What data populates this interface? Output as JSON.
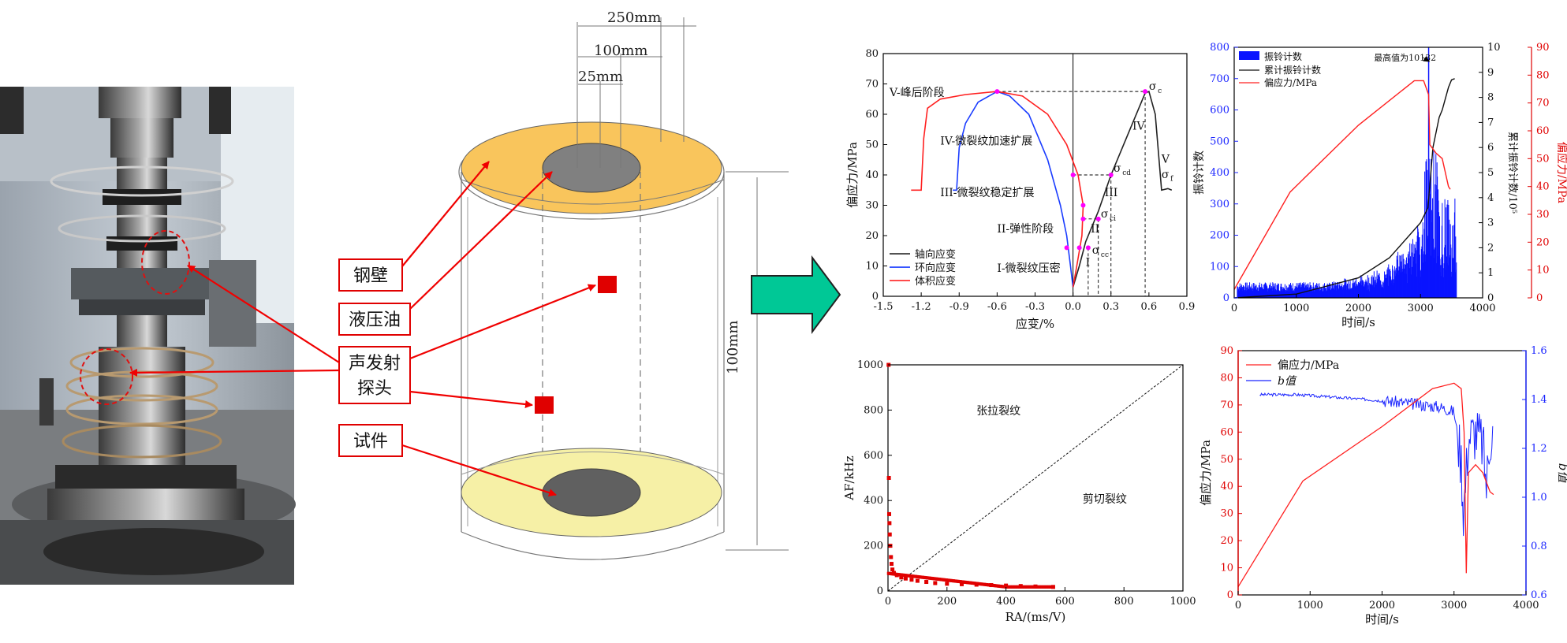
{
  "photo": {
    "description_labels": []
  },
  "schematic": {
    "dim_250": "250mm",
    "dim_100w": "100mm",
    "dim_25": "25mm",
    "dim_100h": "100mm",
    "labels": {
      "steel_wall": "钢壁",
      "hydraulic_oil": "液压油",
      "ae_probe_1": "声发射",
      "ae_probe_2": "探头",
      "specimen": "试件"
    },
    "colors": {
      "oil": "#f9c55c",
      "oil_bottom": "#f6f0a6",
      "specimen": "#808080",
      "probe": "#e00000",
      "arrow": "#f00000",
      "big_arrow": "#00c896"
    }
  },
  "chart_data": [
    {
      "type": "line",
      "id": "stress-strain",
      "xlabel": "应变/%",
      "ylabel": "偏应力/MPa",
      "xlim": [
        -1.5,
        0.9
      ],
      "ylim": [
        0,
        80
      ],
      "xticks": [
        "-1.5",
        "-1.2",
        "-0.9",
        "-0.6",
        "-0.3",
        "0.0",
        "0.3",
        "0.6",
        "0.9"
      ],
      "yticks": [
        "0",
        "10",
        "20",
        "30",
        "40",
        "50",
        "60",
        "70",
        "80"
      ],
      "legend": [
        "轴向应变",
        "环向应变",
        "体积应变"
      ],
      "legend_colors": [
        "#222222",
        "#1a3cff",
        "#ff2020"
      ],
      "annotations": {
        "stage5": "V-峰后阶段",
        "stage4": "IV-微裂纹加速扩展",
        "stage3": "III-微裂纹稳定扩展",
        "stage2": "II-弹性阶段",
        "stage1": "I-微裂纹压密",
        "roman4": "IV",
        "roman5": "V",
        "roman3": "III",
        "roman2": "II",
        "roman1": "I",
        "sigma_c": "σ",
        "sigma_c_sub": "c",
        "sigma_cd_sub": "cd",
        "sigma_ci_sub": "ci",
        "sigma_cc_sub": "cc",
        "sigma_f_sub": "f"
      },
      "series": [
        {
          "name": "轴向应变",
          "points": [
            [
              0,
              3
            ],
            [
              0.05,
              10
            ],
            [
              0.1,
              18
            ],
            [
              0.2,
              28
            ],
            [
              0.3,
              40
            ],
            [
              0.45,
              55
            ],
            [
              0.57,
              67
            ],
            [
              0.6,
              67.5
            ],
            [
              0.65,
              60
            ],
            [
              0.7,
              35
            ],
            [
              0.75,
              35.5
            ],
            [
              0.78,
              35
            ]
          ]
        },
        {
          "name": "环向应变",
          "points": [
            [
              0,
              3
            ],
            [
              -0.02,
              10
            ],
            [
              -0.05,
              20
            ],
            [
              -0.1,
              30
            ],
            [
              -0.2,
              45
            ],
            [
              -0.35,
              60
            ],
            [
              -0.5,
              66
            ],
            [
              -0.6,
              67.5
            ],
            [
              -0.75,
              64
            ],
            [
              -0.85,
              57
            ],
            [
              -0.9,
              49
            ],
            [
              -0.92,
              35
            ],
            [
              -0.95,
              35
            ]
          ]
        },
        {
          "name": "体积应变",
          "points": [
            [
              0,
              3
            ],
            [
              0.03,
              10
            ],
            [
              0.07,
              20
            ],
            [
              0.08,
              30
            ],
            [
              0.04,
              40
            ],
            [
              -0.05,
              50
            ],
            [
              -0.2,
              60
            ],
            [
              -0.4,
              66
            ],
            [
              -0.6,
              67.5
            ],
            [
              -0.85,
              66.5
            ],
            [
              -1.05,
              65
            ],
            [
              -1.15,
              62
            ],
            [
              -1.18,
              52
            ],
            [
              -1.2,
              35
            ],
            [
              -1.28,
              35
            ]
          ]
        }
      ]
    },
    {
      "type": "bar",
      "id": "ringing-count",
      "xlabel": "时间/s",
      "ylabel_left": "振铃计数",
      "ylabel_mid": "累计振铃计数/10⁵",
      "ylabel_right": "偏应力/MPa",
      "xlim": [
        0,
        4000
      ],
      "ylim_left": [
        0,
        800
      ],
      "ylim_mid": [
        0,
        10
      ],
      "ylim_right": [
        0,
        90
      ],
      "xticks": [
        "0",
        "1000",
        "2000",
        "3000",
        "4000"
      ],
      "yticks_left": [
        "0",
        "100",
        "200",
        "300",
        "400",
        "500",
        "600",
        "700",
        "800"
      ],
      "yticks_mid": [
        "0",
        "1",
        "2",
        "3",
        "4",
        "5",
        "6",
        "7",
        "8",
        "9",
        "10"
      ],
      "yticks_right": [
        "0",
        "10",
        "20",
        "30",
        "40",
        "50",
        "60",
        "70",
        "80",
        "90"
      ],
      "legend": [
        "振铃计数",
        "累计振铃计数",
        "偏应力/MPa"
      ],
      "annotation": "最高值为10132",
      "stress": [
        [
          0,
          3
        ],
        [
          900,
          38
        ],
        [
          2000,
          62
        ],
        [
          2900,
          78
        ],
        [
          3050,
          78
        ],
        [
          3130,
          73
        ],
        [
          3150,
          55
        ],
        [
          3250,
          52
        ],
        [
          3350,
          50
        ],
        [
          3450,
          40
        ],
        [
          3480,
          39
        ]
      ],
      "cumulative": [
        [
          0,
          0
        ],
        [
          1000,
          0.15
        ],
        [
          2000,
          0.8
        ],
        [
          2500,
          1.6
        ],
        [
          3000,
          3.0
        ],
        [
          3120,
          3.6
        ],
        [
          3200,
          6.0
        ],
        [
          3300,
          7.2
        ],
        [
          3350,
          7.5
        ],
        [
          3450,
          8.4
        ],
        [
          3500,
          8.7
        ],
        [
          3550,
          8.75
        ]
      ]
    },
    {
      "type": "scatter",
      "id": "ra-af",
      "xlabel": "RA/(ms/V)",
      "ylabel": "AF/kHz",
      "xlim": [
        0,
        1000
      ],
      "ylim": [
        0,
        1000
      ],
      "xticks": [
        "0",
        "200",
        "400",
        "600",
        "800",
        "1000"
      ],
      "yticks": [
        "0",
        "200",
        "400",
        "600",
        "800",
        "1000"
      ],
      "region_tensile": "张拉裂纹",
      "region_shear": "剪切裂纹",
      "points": [
        [
          2,
          1000
        ],
        [
          3,
          500
        ],
        [
          4,
          340
        ],
        [
          5,
          300
        ],
        [
          6,
          250
        ],
        [
          8,
          200
        ],
        [
          10,
          150
        ],
        [
          12,
          120
        ],
        [
          15,
          95
        ],
        [
          20,
          80
        ],
        [
          30,
          70
        ],
        [
          45,
          60
        ],
        [
          60,
          55
        ],
        [
          80,
          50
        ],
        [
          100,
          45
        ],
        [
          130,
          40
        ],
        [
          160,
          35
        ],
        [
          200,
          32
        ],
        [
          250,
          30
        ],
        [
          300,
          28
        ],
        [
          350,
          26
        ],
        [
          400,
          24
        ],
        [
          450,
          22
        ],
        [
          500,
          20
        ],
        [
          560,
          18
        ]
      ]
    },
    {
      "type": "line",
      "id": "b-value",
      "xlabel": "时间/s",
      "ylabel_left": "偏应力/MPa",
      "ylabel_right": "b值",
      "xlim": [
        0,
        4000
      ],
      "ylim_left": [
        0,
        90
      ],
      "ylim_right": [
        0.6,
        1.6
      ],
      "xticks": [
        "0",
        "1000",
        "2000",
        "3000",
        "4000"
      ],
      "yticks_left": [
        "0",
        "10",
        "20",
        "30",
        "40",
        "50",
        "60",
        "70",
        "80",
        "90"
      ],
      "yticks_right": [
        "0.6",
        "0.8",
        "1.0",
        "1.2",
        "1.4",
        "1.6"
      ],
      "legend": [
        "偏应力/MPa",
        "b值"
      ],
      "stress": [
        [
          0,
          3
        ],
        [
          900,
          42
        ],
        [
          2000,
          62
        ],
        [
          2700,
          76
        ],
        [
          3000,
          78
        ],
        [
          3100,
          76
        ],
        [
          3140,
          60
        ],
        [
          3170,
          8
        ],
        [
          3200,
          45
        ],
        [
          3300,
          48
        ],
        [
          3400,
          45
        ],
        [
          3500,
          38
        ],
        [
          3550,
          37
        ]
      ],
      "b": [
        [
          300,
          1.42
        ],
        [
          800,
          1.42
        ],
        [
          1300,
          1.41
        ],
        [
          1800,
          1.4
        ],
        [
          2200,
          1.39
        ],
        [
          2500,
          1.38
        ],
        [
          2800,
          1.37
        ],
        [
          3000,
          1.35
        ],
        [
          3100,
          1.15
        ],
        [
          3130,
          0.95
        ],
        [
          3160,
          1.05
        ],
        [
          3200,
          1.25
        ],
        [
          3300,
          1.27
        ],
        [
          3400,
          1.22
        ],
        [
          3450,
          1.05
        ],
        [
          3500,
          1.25
        ],
        [
          3550,
          1.28
        ]
      ]
    }
  ]
}
